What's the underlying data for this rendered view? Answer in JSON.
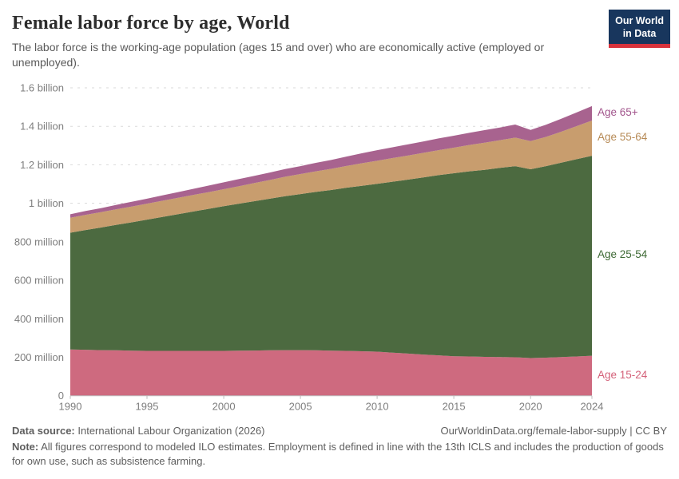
{
  "chart_data": {
    "type": "area",
    "stacked": true,
    "title": "Female labor force by age, World",
    "subtitle": "The labor force is the working-age population (ages 15 and over) who are economically active (employed or unemployed).",
    "unit": "people (millions)",
    "x": [
      1990,
      1991,
      1992,
      1993,
      1994,
      1995,
      1996,
      1997,
      1998,
      1999,
      2000,
      2001,
      2002,
      2003,
      2004,
      2005,
      2006,
      2007,
      2008,
      2009,
      2010,
      2011,
      2012,
      2013,
      2014,
      2015,
      2016,
      2017,
      2018,
      2019,
      2020,
      2021,
      2022,
      2023,
      2024
    ],
    "series": [
      {
        "name": "Age 15-24",
        "color": "#ce6a7f",
        "label_color": "#d4627a",
        "values": [
          240,
          239,
          237,
          236,
          234,
          233,
          233,
          233,
          233,
          233,
          233,
          234,
          235,
          236,
          237,
          237,
          236,
          234,
          233,
          231,
          229,
          224,
          219,
          214,
          210,
          205,
          204,
          202,
          201,
          200,
          196,
          198,
          201,
          204,
          208
        ]
      },
      {
        "name": "Age 25-54",
        "color": "#4c6a40",
        "label_color": "#3e6a35",
        "values": [
          607,
          622,
          637,
          652,
          667,
          682,
          696,
          710,
          724,
          738,
          752,
          764,
          776,
          788,
          800,
          811,
          823,
          835,
          848,
          860,
          872,
          888,
          904,
          920,
          936,
          951,
          962,
          972,
          983,
          993,
          981,
          995,
          1010,
          1025,
          1039
        ]
      },
      {
        "name": "Age 55-64",
        "color": "#c89d6e",
        "label_color": "#b78b57",
        "values": [
          78,
          79,
          80,
          81,
          82,
          83,
          84,
          85,
          86,
          87,
          88,
          91,
          94,
          97,
          101,
          104,
          107,
          110,
          113,
          117,
          120,
          123,
          125,
          128,
          130,
          133,
          137,
          141,
          144,
          148,
          146,
          152,
          161,
          172,
          183
        ]
      },
      {
        "name": "Age 65+",
        "color": "#a8638f",
        "label_color": "#a2568d",
        "values": [
          18,
          20,
          21,
          23,
          25,
          26,
          28,
          30,
          32,
          34,
          36,
          37,
          38,
          39,
          40,
          41,
          44,
          46,
          49,
          52,
          55,
          56,
          58,
          59,
          61,
          62,
          63,
          65,
          66,
          68,
          58,
          63,
          67,
          71,
          75
        ]
      }
    ],
    "ylim": [
      0,
      1600
    ],
    "yticks": [
      {
        "value": 0,
        "label": "0"
      },
      {
        "value": 200,
        "label": "200 million"
      },
      {
        "value": 400,
        "label": "400 million"
      },
      {
        "value": 600,
        "label": "600 million"
      },
      {
        "value": 800,
        "label": "800 million"
      },
      {
        "value": 1000,
        "label": "1 billion"
      },
      {
        "value": 1200,
        "label": "1.2 billion"
      },
      {
        "value": 1400,
        "label": "1.4 billion"
      },
      {
        "value": 1600,
        "label": "1.6 billion"
      }
    ],
    "xticks": [
      1990,
      1995,
      2000,
      2005,
      2010,
      2015,
      2020,
      2024
    ],
    "grid": "horizontal-dashed",
    "legend_position": "right-inline"
  },
  "logo": {
    "line1": "Our World",
    "line2": "in Data"
  },
  "footer": {
    "source_label": "Data source:",
    "source_text": " International Labour Organization (2026)",
    "right_link": "OurWorldinData.org/female-labor-supply",
    "right_rest": " | CC BY",
    "note_label": "Note:",
    "note_text": " All figures correspond to modeled ILO estimates. Employment is defined in line with the 13th ICLS and includes the production of goods for own use, such as subsistence farming."
  }
}
